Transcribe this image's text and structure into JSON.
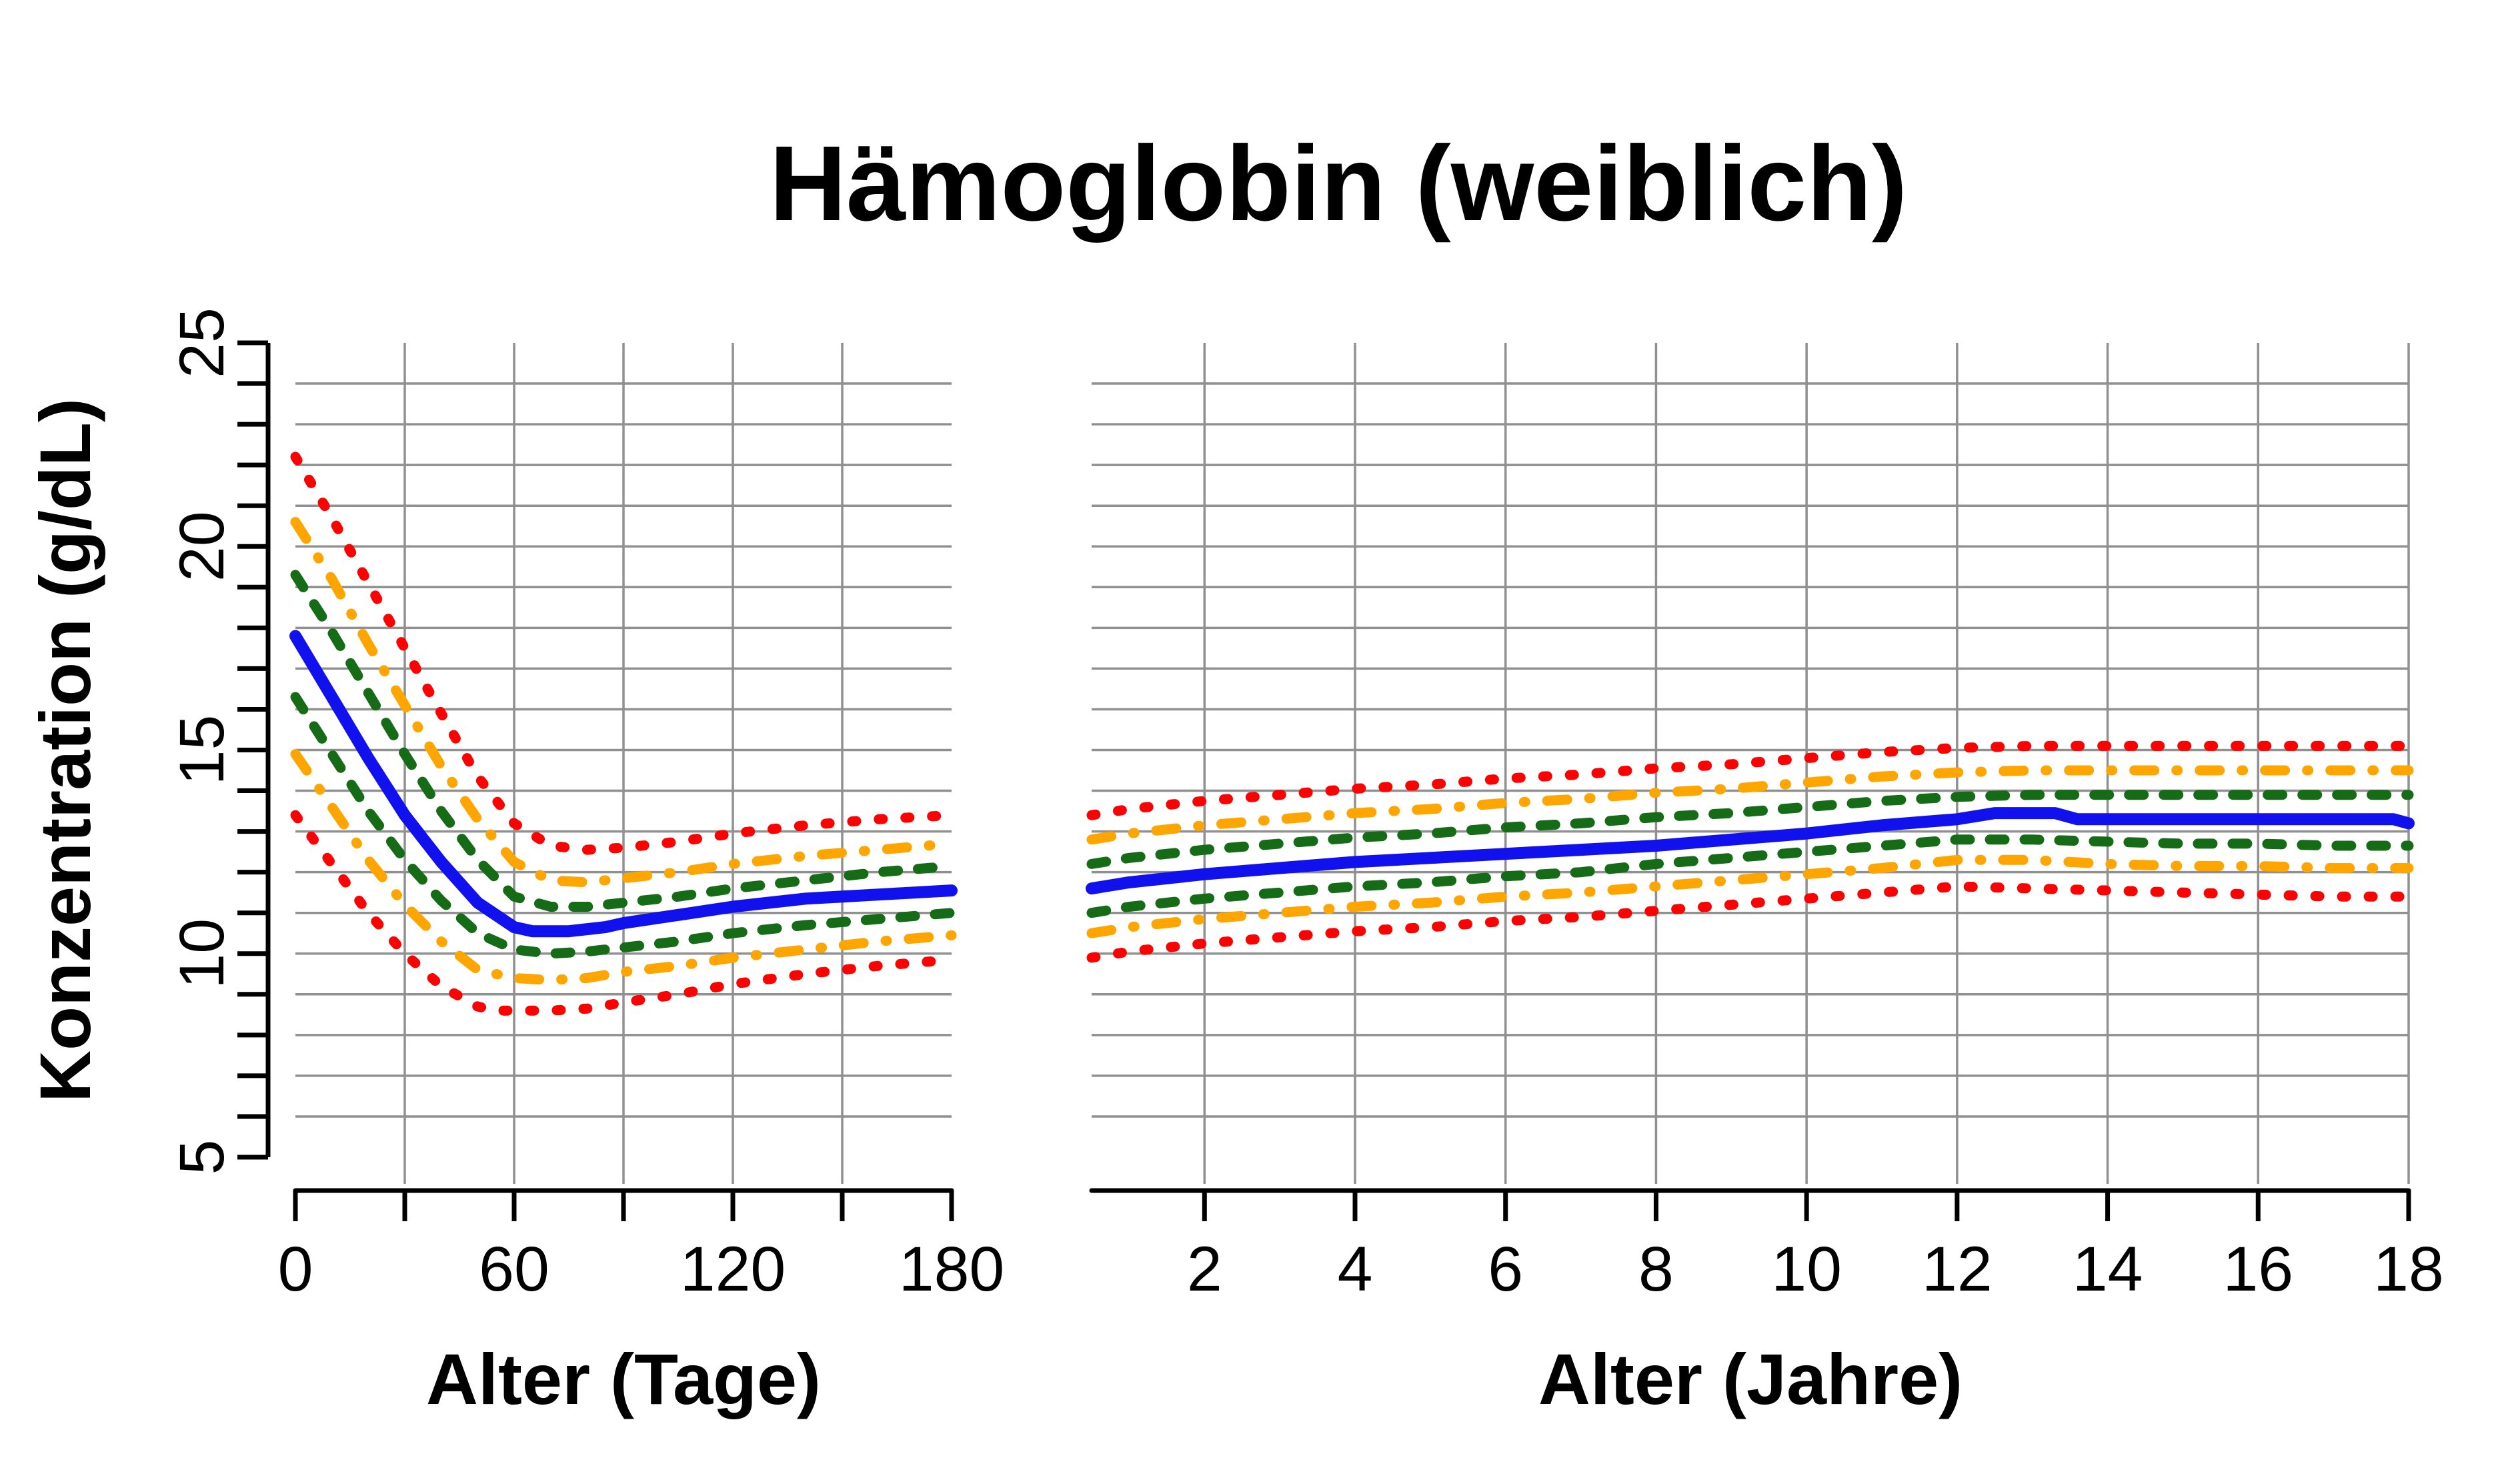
{
  "title": "Hämoglobin (weiblich)",
  "chart_data": {
    "type": "line",
    "title": "Hämoglobin (weiblich)",
    "ylabel": "Konzentration (g/dL)",
    "ylim": [
      5,
      25
    ],
    "y_major_ticks": [
      5,
      10,
      15,
      20,
      25
    ],
    "y_minor_tick_step": 1,
    "y_gridlines": [
      6,
      7,
      8,
      9,
      10,
      11,
      12,
      13,
      14,
      15,
      16,
      17,
      18,
      19,
      20,
      21,
      22,
      23,
      24
    ],
    "grid": true,
    "legend": "none",
    "colors": {
      "red": "#FF0000",
      "orange": "#FFA500",
      "green": "#166B16",
      "blue": "#1111EE",
      "gridline": "#909090",
      "axis": "#000000"
    },
    "panels": [
      {
        "id": "days",
        "xlabel": "Alter (Tage)",
        "xlim": [
          0,
          180
        ],
        "xticks": [
          0,
          30,
          60,
          90,
          120,
          150,
          180
        ],
        "xtick_labels": [
          "0",
          "",
          "60",
          "",
          "120",
          "",
          "180"
        ],
        "x_gridlines": [
          30,
          60,
          90,
          120,
          150
        ]
      },
      {
        "id": "years",
        "xlabel": "Alter (Jahre)",
        "xlim": [
          0.5,
          18
        ],
        "xticks": [
          2,
          4,
          6,
          8,
          10,
          12,
          14,
          16,
          18
        ],
        "xtick_labels": [
          "2",
          "4",
          "6",
          "8",
          "10",
          "12",
          "14",
          "16",
          "18"
        ],
        "x_gridlines": [
          2,
          4,
          6,
          8,
          10,
          12,
          14,
          16,
          18
        ]
      }
    ],
    "series": [
      {
        "name": "upper-red-dotted",
        "style": "dotted",
        "color_key": "red",
        "points_days": [
          [
            0,
            22.2
          ],
          [
            10,
            20.7
          ],
          [
            20,
            19.1
          ],
          [
            30,
            17.5
          ],
          [
            40,
            15.9
          ],
          [
            50,
            14.35
          ],
          [
            60,
            13.2
          ],
          [
            70,
            12.65
          ],
          [
            80,
            12.55
          ],
          [
            90,
            12.6
          ],
          [
            105,
            12.75
          ],
          [
            120,
            12.95
          ],
          [
            140,
            13.15
          ],
          [
            160,
            13.3
          ],
          [
            180,
            13.4
          ]
        ],
        "points_years": [
          [
            0.5,
            13.4
          ],
          [
            1,
            13.55
          ],
          [
            2,
            13.75
          ],
          [
            3,
            13.9
          ],
          [
            4,
            14.05
          ],
          [
            5,
            14.15
          ],
          [
            6,
            14.3
          ],
          [
            7,
            14.4
          ],
          [
            8,
            14.55
          ],
          [
            9,
            14.65
          ],
          [
            10,
            14.8
          ],
          [
            11,
            14.95
          ],
          [
            12,
            15.05
          ],
          [
            13,
            15.1
          ],
          [
            14,
            15.1
          ],
          [
            15,
            15.1
          ],
          [
            16,
            15.1
          ],
          [
            17,
            15.1
          ],
          [
            18,
            15.1
          ]
        ]
      },
      {
        "name": "upper-orange-dashdot",
        "style": "dashdot",
        "color_key": "orange",
        "points_days": [
          [
            0,
            20.6
          ],
          [
            10,
            19.2
          ],
          [
            20,
            17.6
          ],
          [
            30,
            16.1
          ],
          [
            40,
            14.6
          ],
          [
            50,
            13.3
          ],
          [
            60,
            12.25
          ],
          [
            70,
            11.8
          ],
          [
            80,
            11.75
          ],
          [
            90,
            11.85
          ],
          [
            105,
            12.0
          ],
          [
            120,
            12.2
          ],
          [
            140,
            12.4
          ],
          [
            160,
            12.55
          ],
          [
            180,
            12.7
          ]
        ],
        "points_years": [
          [
            0.5,
            12.8
          ],
          [
            1,
            12.95
          ],
          [
            2,
            13.15
          ],
          [
            3,
            13.3
          ],
          [
            4,
            13.45
          ],
          [
            5,
            13.55
          ],
          [
            6,
            13.7
          ],
          [
            7,
            13.8
          ],
          [
            8,
            13.95
          ],
          [
            9,
            14.05
          ],
          [
            10,
            14.2
          ],
          [
            11,
            14.35
          ],
          [
            12,
            14.45
          ],
          [
            13,
            14.5
          ],
          [
            14,
            14.5
          ],
          [
            15,
            14.5
          ],
          [
            16,
            14.5
          ],
          [
            17,
            14.5
          ],
          [
            18,
            14.5
          ]
        ]
      },
      {
        "name": "upper-green-dashed",
        "style": "dashed",
        "color_key": "green",
        "points_days": [
          [
            0,
            19.3
          ],
          [
            10,
            17.9
          ],
          [
            20,
            16.4
          ],
          [
            30,
            14.9
          ],
          [
            40,
            13.5
          ],
          [
            50,
            12.3
          ],
          [
            60,
            11.4
          ],
          [
            70,
            11.15
          ],
          [
            80,
            11.15
          ],
          [
            90,
            11.25
          ],
          [
            105,
            11.4
          ],
          [
            120,
            11.6
          ],
          [
            140,
            11.8
          ],
          [
            160,
            12.0
          ],
          [
            180,
            12.15
          ]
        ],
        "points_years": [
          [
            0.5,
            12.2
          ],
          [
            1,
            12.35
          ],
          [
            2,
            12.55
          ],
          [
            3,
            12.7
          ],
          [
            4,
            12.85
          ],
          [
            5,
            12.95
          ],
          [
            6,
            13.1
          ],
          [
            7,
            13.2
          ],
          [
            8,
            13.35
          ],
          [
            9,
            13.45
          ],
          [
            10,
            13.6
          ],
          [
            11,
            13.75
          ],
          [
            12,
            13.85
          ],
          [
            13,
            13.9
          ],
          [
            14,
            13.9
          ],
          [
            15,
            13.9
          ],
          [
            16,
            13.9
          ],
          [
            17,
            13.9
          ],
          [
            18,
            13.9
          ]
        ]
      },
      {
        "name": "median-blue-solid",
        "style": "solid",
        "color_key": "blue",
        "points_days": [
          [
            0,
            17.8
          ],
          [
            10,
            16.3
          ],
          [
            20,
            14.8
          ],
          [
            30,
            13.4
          ],
          [
            40,
            12.25
          ],
          [
            50,
            11.25
          ],
          [
            60,
            10.65
          ],
          [
            65,
            10.55
          ],
          [
            75,
            10.55
          ],
          [
            85,
            10.65
          ],
          [
            90,
            10.75
          ],
          [
            105,
            10.95
          ],
          [
            120,
            11.15
          ],
          [
            140,
            11.35
          ],
          [
            160,
            11.45
          ],
          [
            180,
            11.55
          ]
        ],
        "points_years": [
          [
            0.5,
            11.6
          ],
          [
            1,
            11.75
          ],
          [
            2,
            11.95
          ],
          [
            3,
            12.1
          ],
          [
            4,
            12.25
          ],
          [
            5,
            12.35
          ],
          [
            6,
            12.45
          ],
          [
            7,
            12.55
          ],
          [
            8,
            12.65
          ],
          [
            9,
            12.8
          ],
          [
            10,
            12.95
          ],
          [
            11,
            13.15
          ],
          [
            12,
            13.3
          ],
          [
            12.5,
            13.45
          ],
          [
            13.3,
            13.45
          ],
          [
            13.6,
            13.3
          ],
          [
            14,
            13.3
          ],
          [
            15,
            13.3
          ],
          [
            16,
            13.3
          ],
          [
            17,
            13.3
          ],
          [
            17.8,
            13.3
          ],
          [
            18,
            13.2
          ]
        ]
      },
      {
        "name": "lower-green-dashed",
        "style": "dashed",
        "color_key": "green",
        "points_days": [
          [
            0,
            16.3
          ],
          [
            10,
            14.9
          ],
          [
            20,
            13.5
          ],
          [
            30,
            12.3
          ],
          [
            40,
            11.3
          ],
          [
            50,
            10.5
          ],
          [
            60,
            10.1
          ],
          [
            70,
            10.0
          ],
          [
            80,
            10.05
          ],
          [
            90,
            10.15
          ],
          [
            105,
            10.3
          ],
          [
            120,
            10.5
          ],
          [
            140,
            10.7
          ],
          [
            160,
            10.85
          ],
          [
            180,
            11.0
          ]
        ],
        "points_years": [
          [
            0.5,
            11.0
          ],
          [
            1,
            11.15
          ],
          [
            2,
            11.35
          ],
          [
            3,
            11.5
          ],
          [
            4,
            11.65
          ],
          [
            5,
            11.75
          ],
          [
            6,
            11.9
          ],
          [
            7,
            12.0
          ],
          [
            8,
            12.2
          ],
          [
            9,
            12.35
          ],
          [
            10,
            12.5
          ],
          [
            11,
            12.65
          ],
          [
            12,
            12.8
          ],
          [
            13,
            12.8
          ],
          [
            14,
            12.75
          ],
          [
            15,
            12.7
          ],
          [
            16,
            12.7
          ],
          [
            17,
            12.65
          ],
          [
            18,
            12.65
          ]
        ]
      },
      {
        "name": "lower-orange-dashdot",
        "style": "dashdot",
        "color_key": "orange",
        "points_days": [
          [
            0,
            14.9
          ],
          [
            10,
            13.6
          ],
          [
            20,
            12.3
          ],
          [
            30,
            11.2
          ],
          [
            40,
            10.3
          ],
          [
            50,
            9.6
          ],
          [
            60,
            9.4
          ],
          [
            70,
            9.35
          ],
          [
            80,
            9.4
          ],
          [
            90,
            9.55
          ],
          [
            105,
            9.7
          ],
          [
            120,
            9.9
          ],
          [
            140,
            10.1
          ],
          [
            160,
            10.3
          ],
          [
            180,
            10.45
          ]
        ],
        "points_years": [
          [
            0.5,
            10.5
          ],
          [
            1,
            10.65
          ],
          [
            2,
            10.85
          ],
          [
            3,
            11.0
          ],
          [
            4,
            11.15
          ],
          [
            5,
            11.25
          ],
          [
            6,
            11.4
          ],
          [
            7,
            11.5
          ],
          [
            8,
            11.65
          ],
          [
            9,
            11.8
          ],
          [
            10,
            11.95
          ],
          [
            11,
            12.1
          ],
          [
            12,
            12.3
          ],
          [
            13,
            12.3
          ],
          [
            14,
            12.2
          ],
          [
            15,
            12.15
          ],
          [
            16,
            12.15
          ],
          [
            17,
            12.1
          ],
          [
            18,
            12.1
          ]
        ]
      },
      {
        "name": "lower-red-dotted",
        "style": "dotted",
        "color_key": "red",
        "points_days": [
          [
            0,
            13.4
          ],
          [
            10,
            12.2
          ],
          [
            20,
            11.0
          ],
          [
            30,
            10.0
          ],
          [
            40,
            9.2
          ],
          [
            50,
            8.7
          ],
          [
            55,
            8.6
          ],
          [
            70,
            8.6
          ],
          [
            80,
            8.65
          ],
          [
            90,
            8.8
          ],
          [
            105,
            9.0
          ],
          [
            120,
            9.25
          ],
          [
            140,
            9.5
          ],
          [
            160,
            9.7
          ],
          [
            180,
            9.85
          ]
        ],
        "points_years": [
          [
            0.5,
            9.9
          ],
          [
            1,
            10.05
          ],
          [
            2,
            10.25
          ],
          [
            3,
            10.4
          ],
          [
            4,
            10.55
          ],
          [
            5,
            10.65
          ],
          [
            6,
            10.8
          ],
          [
            7,
            10.9
          ],
          [
            8,
            11.05
          ],
          [
            9,
            11.2
          ],
          [
            10,
            11.35
          ],
          [
            11,
            11.5
          ],
          [
            12,
            11.65
          ],
          [
            13,
            11.6
          ],
          [
            14,
            11.55
          ],
          [
            15,
            11.5
          ],
          [
            16,
            11.45
          ],
          [
            17,
            11.4
          ],
          [
            18,
            11.4
          ]
        ]
      }
    ]
  }
}
